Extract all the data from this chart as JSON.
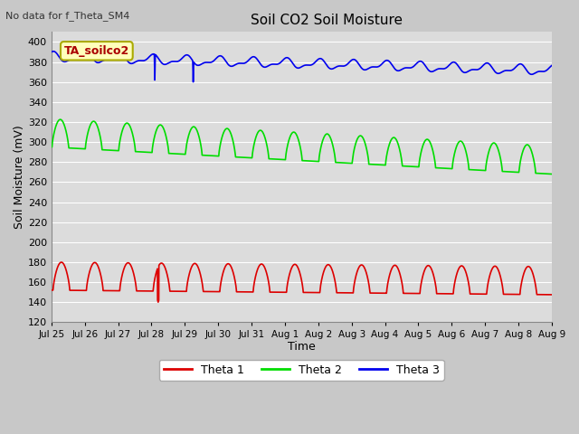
{
  "title": "Soil CO2 Soil Moisture",
  "top_left_text": "No data for f_Theta_SM4",
  "annotation_text": "TA_soilco2",
  "ylabel": "Soil Moisture (mV)",
  "xlabel": "Time",
  "ylim": [
    120,
    410
  ],
  "yticks": [
    120,
    140,
    160,
    180,
    200,
    220,
    240,
    260,
    280,
    300,
    320,
    340,
    360,
    380,
    400
  ],
  "background_color": "#dcdcdc",
  "plot_bg_color": "#dcdcdc",
  "fig_bg_color": "#c8c8c8",
  "grid_color": "#ffffff",
  "line_colors": {
    "theta1": "#dd0000",
    "theta2": "#00dd00",
    "theta3": "#0000ee"
  },
  "legend_labels": [
    "Theta 1",
    "Theta 2",
    "Theta 3"
  ],
  "x_tick_labels": [
    "Jul 25",
    "Jul 26",
    "Jul 27",
    "Jul 28",
    "Jul 29",
    "Jul 30",
    "Jul 31",
    "Aug 1",
    "Aug 2",
    "Aug 3",
    "Aug 4",
    "Aug 5",
    "Aug 6",
    "Aug 7",
    "Aug 8",
    "Aug 9"
  ],
  "n_days": 16
}
